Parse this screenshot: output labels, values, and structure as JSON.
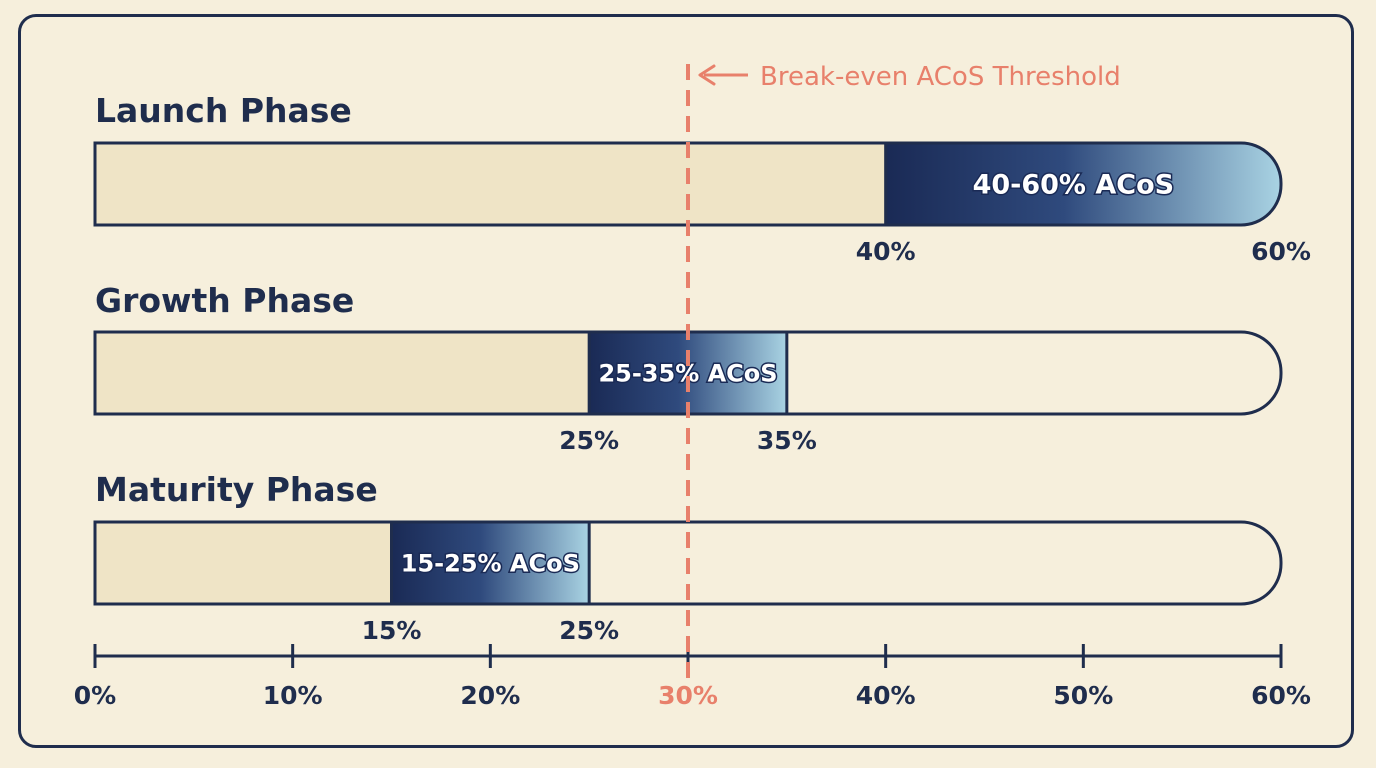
{
  "chart_data": {
    "type": "bar",
    "subtype": "floating-range",
    "xlim": [
      0,
      60
    ],
    "x_unit": "%",
    "ticks": [
      0,
      10,
      20,
      30,
      40,
      50,
      60
    ],
    "tick_labels": [
      "0%",
      "10%",
      "20%",
      "30%",
      "40%",
      "50%",
      "60%"
    ],
    "threshold": {
      "value": 30,
      "label": "Break-even ACoS Threshold",
      "tick_label": "30%"
    },
    "phases": [
      {
        "name": "Launch Phase",
        "min": 40,
        "max": 60,
        "range_label": "40-60% ACoS",
        "min_label": "40%",
        "max_label": "60%"
      },
      {
        "name": "Growth Phase",
        "min": 25,
        "max": 35,
        "range_label": "25-35% ACoS",
        "min_label": "25%",
        "max_label": "35%"
      },
      {
        "name": "Maturity Phase",
        "min": 15,
        "max": 25,
        "range_label": "15-25% ACoS",
        "min_label": "15%",
        "max_label": "25%"
      }
    ],
    "colors": {
      "background": "#f6efdc",
      "filled": "#efe4c6",
      "range_dark": "#1a2a55",
      "range_light": "#a9d3e3",
      "outline": "#1f2d4d",
      "threshold": "#e8806b",
      "text": "#1f2d4d"
    },
    "grid": false,
    "legend": "none"
  }
}
